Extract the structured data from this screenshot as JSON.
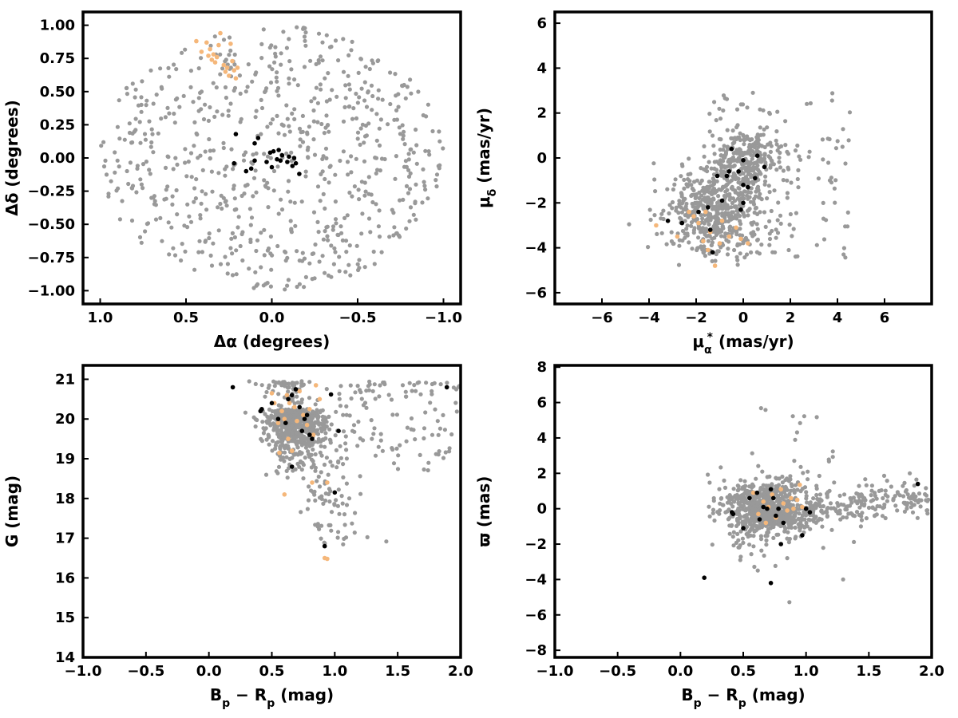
{
  "colors": {
    "field": "#999999",
    "highlight": "#f5b77a",
    "member": "#000000"
  },
  "chart_data": [
    {
      "type": "scatter",
      "panel": "sky-positions",
      "xlabel": "Δα (degrees)",
      "ylabel": "Δδ (degrees)",
      "xlim": [
        1.1,
        -1.1
      ],
      "ylim": [
        -1.1,
        1.1
      ],
      "x_reversed": true,
      "xticks": [
        1.0,
        0.5,
        0.0,
        -0.5,
        -1.0
      ],
      "xtick_labels": [
        "1.0",
        "0.5",
        "0.0",
        "−0.5",
        "−1.0"
      ],
      "yticks": [
        -1.0,
        -0.75,
        -0.5,
        -0.25,
        0.0,
        0.25,
        0.5,
        0.75,
        1.0
      ],
      "ytick_labels": [
        "−1.00",
        "−0.75",
        "−0.50",
        "−0.25",
        "0.00",
        "0.25",
        "0.50",
        "0.75",
        "1.00"
      ],
      "field_distribution": {
        "kind": "disk",
        "center": [
          0,
          0
        ],
        "radius": 1.0,
        "count": 720,
        "seed": 11
      },
      "series": [
        {
          "role": "highlight",
          "points": [
            [
              0.44,
              0.88
            ],
            [
              0.41,
              0.8
            ],
            [
              0.38,
              0.87
            ],
            [
              0.37,
              0.77
            ],
            [
              0.35,
              0.74
            ],
            [
              0.34,
              0.78
            ],
            [
              0.33,
              0.72
            ],
            [
              0.31,
              0.85
            ],
            [
              0.3,
              0.94
            ],
            [
              0.28,
              0.7
            ],
            [
              0.27,
              0.65
            ],
            [
              0.26,
              0.68
            ],
            [
              0.25,
              0.62
            ],
            [
              0.24,
              0.86
            ],
            [
              0.23,
              0.73
            ],
            [
              0.22,
              0.66
            ],
            [
              0.21,
              0.6
            ],
            [
              0.2,
              0.68
            ],
            [
              0.36,
              0.82
            ],
            [
              0.32,
              0.76
            ]
          ]
        },
        {
          "role": "member",
          "points": [
            [
              0.21,
              0.18
            ],
            [
              0.22,
              -0.04
            ],
            [
              0.15,
              -0.1
            ],
            [
              0.12,
              -0.08
            ],
            [
              0.1,
              -0.02
            ],
            [
              0.1,
              0.11
            ],
            [
              0.08,
              0.15
            ],
            [
              0.03,
              -0.03
            ],
            [
              0.01,
              0.04
            ],
            [
              0.0,
              -0.07
            ],
            [
              -0.01,
              0.05
            ],
            [
              -0.03,
              -0.01
            ],
            [
              -0.04,
              0.06
            ],
            [
              -0.05,
              -0.02
            ],
            [
              -0.09,
              -0.03
            ],
            [
              -0.1,
              0.01
            ],
            [
              -0.12,
              -0.06
            ],
            [
              -0.14,
              -0.04
            ],
            [
              -0.16,
              -0.12
            ],
            [
              -0.13,
              0.0
            ],
            [
              -0.06,
              0.02
            ]
          ]
        }
      ]
    },
    {
      "type": "scatter",
      "panel": "proper-motion",
      "xlabel": "μα* (mas/yr)",
      "ylabel": "μδ (mas/yr)",
      "xlim": [
        -8,
        8
      ],
      "ylim": [
        -6.5,
        6.5
      ],
      "x_reversed": false,
      "xticks": [
        -6,
        -4,
        -2,
        0,
        2,
        4,
        6
      ],
      "xtick_labels": [
        "−6",
        "−4",
        "−2",
        "0",
        "2",
        "4",
        "6"
      ],
      "yticks": [
        -6,
        -4,
        -2,
        0,
        2,
        4,
        6
      ],
      "ytick_labels": [
        "−6",
        "−4",
        "−2",
        "0",
        "2",
        "4",
        "6"
      ],
      "field_distribution": {
        "kind": "proper-motion-cloud",
        "count": 880,
        "seed": 23
      },
      "series": [
        {
          "role": "highlight",
          "points": [
            [
              -3.7,
              -3.0
            ],
            [
              -2.8,
              -3.5
            ],
            [
              -2.3,
              -2.4
            ],
            [
              -1.9,
              -2.9
            ],
            [
              -1.7,
              -3.7
            ],
            [
              -1.5,
              -4.1
            ],
            [
              -1.4,
              -3.3
            ],
            [
              -1.2,
              -4.8
            ],
            [
              -1.0,
              -3.8
            ],
            [
              -0.9,
              -2.8
            ],
            [
              -0.6,
              -3.5
            ],
            [
              -0.3,
              -3.1
            ],
            [
              -0.1,
              -3.6
            ],
            [
              0.2,
              -3.8
            ],
            [
              -1.6,
              -2.4
            ],
            [
              -2.1,
              -2.6
            ]
          ]
        },
        {
          "role": "member",
          "points": [
            [
              -3.2,
              -2.8
            ],
            [
              -2.6,
              -2.9
            ],
            [
              -1.9,
              -2.4
            ],
            [
              -1.5,
              -2.2
            ],
            [
              -1.4,
              -3.2
            ],
            [
              -1.3,
              -4.2
            ],
            [
              -1.1,
              -0.8
            ],
            [
              -0.9,
              -1.9
            ],
            [
              -0.7,
              -0.8
            ],
            [
              -0.6,
              -0.6
            ],
            [
              -0.5,
              0.4
            ],
            [
              -0.2,
              -0.6
            ],
            [
              -0.1,
              -2.3
            ],
            [
              0.0,
              -2.0
            ],
            [
              0.0,
              -1.2
            ],
            [
              0.0,
              -0.1
            ],
            [
              0.2,
              -1.3
            ],
            [
              0.5,
              -0.9
            ],
            [
              0.6,
              0.1
            ],
            [
              0.9,
              -0.4
            ]
          ]
        }
      ]
    },
    {
      "type": "scatter",
      "panel": "colour-magnitude",
      "xlabel": "Bp − Rp (mag)",
      "ylabel": "G (mag)",
      "xlim": [
        -1.0,
        2.0
      ],
      "ylim": [
        14.0,
        21.35
      ],
      "x_reversed": false,
      "xticks": [
        -1.0,
        -0.5,
        0.0,
        0.5,
        1.0,
        1.5,
        2.0
      ],
      "xtick_labels": [
        "−1.0",
        "−0.5",
        "0.0",
        "0.5",
        "1.0",
        "1.5",
        "2.0"
      ],
      "yticks": [
        14,
        15,
        16,
        17,
        18,
        19,
        20,
        21
      ],
      "ytick_labels": [
        "14",
        "15",
        "16",
        "17",
        "18",
        "19",
        "20",
        "21"
      ],
      "field_distribution": {
        "kind": "cmd-cloud",
        "count": 820,
        "seed": 37
      },
      "series": [
        {
          "role": "highlight",
          "points": [
            [
              0.5,
              20.65
            ],
            [
              0.52,
              20.4
            ],
            [
              0.55,
              19.9
            ],
            [
              0.58,
              20.2
            ],
            [
              0.6,
              20.0
            ],
            [
              0.62,
              20.6
            ],
            [
              0.63,
              19.5
            ],
            [
              0.64,
              20.4
            ],
            [
              0.66,
              19.2
            ],
            [
              0.68,
              20.3
            ],
            [
              0.7,
              19.95
            ],
            [
              0.72,
              20.7
            ],
            [
              0.75,
              20.1
            ],
            [
              0.78,
              19.85
            ],
            [
              0.8,
              20.25
            ],
            [
              0.83,
              19.6
            ],
            [
              0.85,
              20.85
            ],
            [
              0.88,
              20.5
            ],
            [
              0.56,
              19.15
            ],
            [
              0.6,
              18.1
            ],
            [
              0.82,
              18.4
            ],
            [
              0.94,
              18.4
            ],
            [
              0.92,
              16.5
            ],
            [
              0.94,
              16.48
            ]
          ]
        },
        {
          "role": "member",
          "points": [
            [
              0.19,
              20.8
            ],
            [
              0.41,
              20.2
            ],
            [
              0.42,
              20.25
            ],
            [
              0.5,
              20.4
            ],
            [
              0.55,
              20.0
            ],
            [
              0.61,
              19.9
            ],
            [
              0.63,
              20.5
            ],
            [
              0.66,
              20.6
            ],
            [
              0.69,
              20.75
            ],
            [
              0.72,
              20.3
            ],
            [
              0.74,
              19.7
            ],
            [
              0.76,
              20.0
            ],
            [
              0.78,
              20.1
            ],
            [
              0.8,
              19.6
            ],
            [
              0.82,
              19.5
            ],
            [
              0.97,
              20.62
            ],
            [
              1.03,
              19.7
            ],
            [
              1.0,
              18.15
            ],
            [
              0.66,
              18.8
            ],
            [
              0.92,
              16.8
            ],
            [
              1.89,
              20.8
            ]
          ]
        }
      ]
    },
    {
      "type": "scatter",
      "panel": "parallax",
      "xlabel": "Bp − Rp (mag)",
      "ylabel": "ϖ (mas)",
      "xlim": [
        -1.0,
        2.0
      ],
      "ylim": [
        -8.4,
        8.1
      ],
      "x_reversed": false,
      "xticks": [
        -1.0,
        -0.5,
        0.0,
        0.5,
        1.0,
        1.5,
        2.0
      ],
      "xtick_labels": [
        "−1.0",
        "−0.5",
        "0.0",
        "0.5",
        "1.0",
        "1.5",
        "2.0"
      ],
      "yticks": [
        -8,
        -6,
        -4,
        -2,
        0,
        2,
        4,
        6,
        8
      ],
      "ytick_labels": [
        "−8",
        "−6",
        "−4",
        "−2",
        "0",
        "2",
        "4",
        "6",
        "8"
      ],
      "field_distribution": {
        "kind": "parallax-cloud",
        "count": 950,
        "seed": 53
      },
      "series": [
        {
          "role": "highlight",
          "points": [
            [
              0.58,
              0.9
            ],
            [
              0.62,
              -0.3
            ],
            [
              0.66,
              0.4
            ],
            [
              0.7,
              0.1
            ],
            [
              0.73,
              0.8
            ],
            [
              0.76,
              -0.5
            ],
            [
              0.8,
              1.1
            ],
            [
              0.82,
              0.3
            ],
            [
              0.85,
              -0.1
            ],
            [
              0.88,
              0.6
            ],
            [
              0.9,
              0.0
            ],
            [
              0.93,
              0.5
            ],
            [
              0.95,
              1.35
            ],
            [
              0.97,
              0.1
            ],
            [
              0.68,
              -0.8
            ]
          ]
        },
        {
          "role": "member",
          "points": [
            [
              0.19,
              -3.9
            ],
            [
              0.41,
              -0.2
            ],
            [
              0.42,
              -0.3
            ],
            [
              0.5,
              -1.1
            ],
            [
              0.55,
              0.6
            ],
            [
              0.61,
              0.9
            ],
            [
              0.63,
              -0.6
            ],
            [
              0.66,
              0.1
            ],
            [
              0.69,
              0.0
            ],
            [
              0.72,
              1.1
            ],
            [
              0.72,
              -4.2
            ],
            [
              0.74,
              0.6
            ],
            [
              0.76,
              -0.4
            ],
            [
              0.78,
              0.0
            ],
            [
              0.8,
              -2.0
            ],
            [
              0.82,
              -0.8
            ],
            [
              0.97,
              -1.5
            ],
            [
              1.0,
              0.0
            ],
            [
              1.03,
              -0.2
            ],
            [
              1.89,
              1.4
            ]
          ]
        }
      ]
    }
  ]
}
